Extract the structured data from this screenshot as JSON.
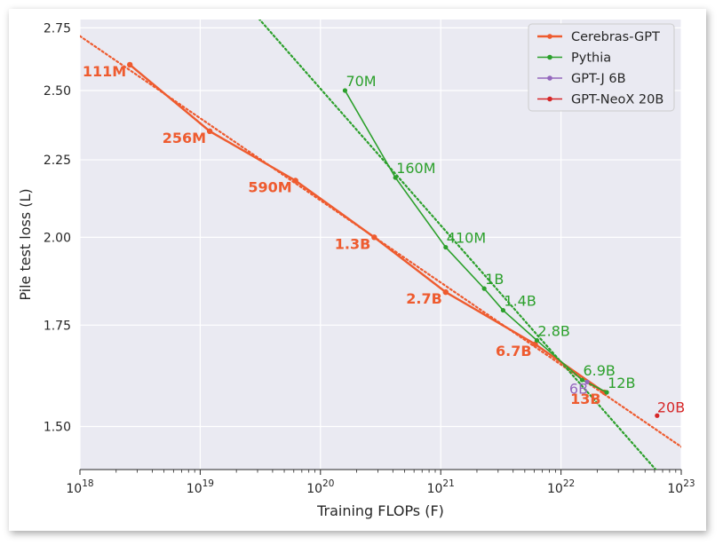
{
  "chart_data": {
    "type": "line",
    "xlabel": "Training FLOPs (F)",
    "ylabel": "Pile test loss (L)",
    "x_scale": "log",
    "y_scale": "log",
    "xlim": [
      1e+18,
      1e+23
    ],
    "ylim": [
      1.405,
      2.785
    ],
    "x_ticks": [
      {
        "v": 1e+18,
        "base": "10",
        "exp": "18"
      },
      {
        "v": 1e+19,
        "base": "10",
        "exp": "19"
      },
      {
        "v": 1e+20,
        "base": "10",
        "exp": "20"
      },
      {
        "v": 1e+21,
        "base": "10",
        "exp": "21"
      },
      {
        "v": 1e+22,
        "base": "10",
        "exp": "22"
      },
      {
        "v": 1e+23,
        "base": "10",
        "exp": "23"
      }
    ],
    "y_ticks": [
      {
        "v": 1.5,
        "label": "1.50"
      },
      {
        "v": 1.75,
        "label": "1.75"
      },
      {
        "v": 2.0,
        "label": "2.00"
      },
      {
        "v": 2.25,
        "label": "2.25"
      },
      {
        "v": 2.5,
        "label": "2.50"
      },
      {
        "v": 2.75,
        "label": "2.75"
      }
    ],
    "grid": true,
    "legend_position": "top-right",
    "series": [
      {
        "name": "Cerebras-GPT",
        "color": "#ee5b2f",
        "line": true,
        "points": [
          {
            "x": 2.6e+18,
            "y": 2.6,
            "label": "111M"
          },
          {
            "x": 1.2e+19,
            "y": 2.35,
            "label": "256M"
          },
          {
            "x": 6.2e+19,
            "y": 2.18,
            "label": "590M"
          },
          {
            "x": 2.8e+20,
            "y": 2.0,
            "label": "1.3B"
          },
          {
            "x": 1.1e+21,
            "y": 1.84,
            "label": "2.7B"
          },
          {
            "x": 6.1e+21,
            "y": 1.7,
            "label": "6.7B"
          },
          {
            "x": 2.3e+22,
            "y": 1.58,
            "label": "13B"
          }
        ]
      },
      {
        "name": "Pythia",
        "color": "#2ca02c",
        "line": true,
        "points": [
          {
            "x": 1.6e+20,
            "y": 2.5,
            "label": "70M"
          },
          {
            "x": 4.2e+20,
            "y": 2.19,
            "label": "160M"
          },
          {
            "x": 1.1e+21,
            "y": 1.97,
            "label": "410M"
          },
          {
            "x": 2.3e+21,
            "y": 1.85,
            "label": "1B"
          },
          {
            "x": 3.3e+21,
            "y": 1.79,
            "label": "1.4B"
          },
          {
            "x": 6.3e+21,
            "y": 1.71,
            "label": "2.8B"
          },
          {
            "x": 1.5e+22,
            "y": 1.61,
            "label": "6.9B"
          },
          {
            "x": 2.4e+22,
            "y": 1.58,
            "label": "12B"
          }
        ]
      },
      {
        "name": "GPT-J 6B",
        "color": "#9467bd",
        "line": false,
        "points": [
          {
            "x": 1.65e+22,
            "y": 1.605,
            "label": "6B"
          }
        ]
      },
      {
        "name": "GPT-NeoX 20B",
        "color": "#d62728",
        "line": false,
        "points": [
          {
            "x": 6.3e+22,
            "y": 1.525,
            "label": "20B"
          }
        ]
      }
    ],
    "fits": [
      {
        "series": "Cerebras-GPT",
        "color": "#ee5b2f",
        "style": "dotted"
      },
      {
        "series": "Pythia",
        "color": "#2ca02c",
        "style": "dotted"
      }
    ]
  }
}
